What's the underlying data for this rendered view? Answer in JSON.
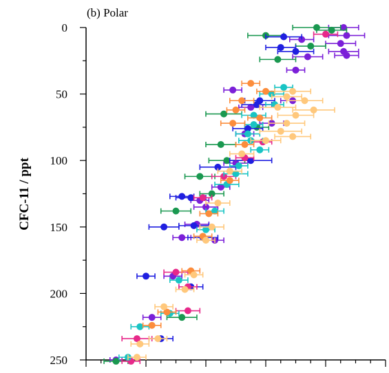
{
  "chart_data": {
    "type": "scatter",
    "panel_label": "(b) Polar",
    "ylabel": "CFC-11 / ppt",
    "xlabel": "",
    "yaxis_inverted": true,
    "ylim": [
      0,
      250
    ],
    "yticks": [
      "0",
      "50",
      "100",
      "150",
      "200",
      "250"
    ],
    "xlim": [
      0,
      10
    ],
    "xtick_labels_visible": false,
    "grid": false,
    "error_bars": "horizontal",
    "series": [
      {
        "color": "#7b1fd8",
        "points": [
          {
            "x": 8.6,
            "y": 0,
            "err": 0.5
          },
          {
            "x": 8.7,
            "y": 6,
            "err": 0.6
          },
          {
            "x": 8.5,
            "y": 12,
            "err": 0.5
          },
          {
            "x": 8.6,
            "y": 18,
            "err": 0.5
          },
          {
            "x": 8.7,
            "y": 21,
            "err": 0.4
          },
          {
            "x": 7.2,
            "y": 9,
            "err": 0.4
          },
          {
            "x": 7.4,
            "y": 22,
            "err": 0.5
          },
          {
            "x": 7.0,
            "y": 32,
            "err": 0.3
          },
          {
            "x": 5.5,
            "y": 60,
            "err": 0.4
          },
          {
            "x": 6.2,
            "y": 72,
            "err": 0.4
          },
          {
            "x": 5.3,
            "y": 80,
            "err": 0.3
          },
          {
            "x": 6.9,
            "y": 55,
            "err": 0.4
          },
          {
            "x": 5.0,
            "y": 102,
            "err": 0.4
          },
          {
            "x": 4.5,
            "y": 120,
            "err": 0.3
          },
          {
            "x": 4.0,
            "y": 135,
            "err": 0.4
          },
          {
            "x": 3.7,
            "y": 148,
            "err": 0.4
          },
          {
            "x": 4.3,
            "y": 160,
            "err": 0.3
          },
          {
            "x": 2.9,
            "y": 187,
            "err": 0.3
          },
          {
            "x": 2.2,
            "y": 218,
            "err": 0.3
          },
          {
            "x": 1.0,
            "y": 250,
            "err": 0.2
          },
          {
            "x": 3.2,
            "y": 158,
            "err": 0.3
          },
          {
            "x": 4.9,
            "y": 47,
            "err": 0.3
          },
          {
            "x": 3.8,
            "y": 130,
            "err": 0.3
          }
        ]
      },
      {
        "color": "#1a9850",
        "points": [
          {
            "x": 7.7,
            "y": 0,
            "err": 0.8
          },
          {
            "x": 8.2,
            "y": 2,
            "err": 0.5
          },
          {
            "x": 7.5,
            "y": 14,
            "err": 0.5
          },
          {
            "x": 6.4,
            "y": 24,
            "err": 0.6
          },
          {
            "x": 6.0,
            "y": 6,
            "err": 0.6
          },
          {
            "x": 4.6,
            "y": 65,
            "err": 0.6
          },
          {
            "x": 4.5,
            "y": 88,
            "err": 0.5
          },
          {
            "x": 4.7,
            "y": 100,
            "err": 0.6
          },
          {
            "x": 3.8,
            "y": 112,
            "err": 0.5
          },
          {
            "x": 3.0,
            "y": 138,
            "err": 0.5
          },
          {
            "x": 3.2,
            "y": 218,
            "err": 0.5
          },
          {
            "x": 1.0,
            "y": 251,
            "err": 0.4
          },
          {
            "x": 4.2,
            "y": 125,
            "err": 0.4
          },
          {
            "x": 5.7,
            "y": 75,
            "err": 0.4
          }
        ]
      },
      {
        "color": "#1f1fe0",
        "points": [
          {
            "x": 6.6,
            "y": 7,
            "err": 0.6
          },
          {
            "x": 7.0,
            "y": 18,
            "err": 0.6
          },
          {
            "x": 6.5,
            "y": 15,
            "err": 0.5
          },
          {
            "x": 5.8,
            "y": 55,
            "err": 0.5
          },
          {
            "x": 5.7,
            "y": 58,
            "err": 0.5
          },
          {
            "x": 5.4,
            "y": 76,
            "err": 0.5
          },
          {
            "x": 5.5,
            "y": 100,
            "err": 0.7
          },
          {
            "x": 4.4,
            "y": 105,
            "err": 0.6
          },
          {
            "x": 3.5,
            "y": 128,
            "err": 0.5
          },
          {
            "x": 2.6,
            "y": 150,
            "err": 0.5
          },
          {
            "x": 3.6,
            "y": 149,
            "err": 0.5
          },
          {
            "x": 3.9,
            "y": 158,
            "err": 0.5
          },
          {
            "x": 3.5,
            "y": 195,
            "err": 0.4
          },
          {
            "x": 2.0,
            "y": 187,
            "err": 0.3
          },
          {
            "x": 2.5,
            "y": 234,
            "err": 0.4
          },
          {
            "x": 3.2,
            "y": 127,
            "err": 0.4
          }
        ]
      },
      {
        "color": "#e7298a",
        "points": [
          {
            "x": 8.0,
            "y": 5,
            "err": 0.4
          },
          {
            "x": 5.9,
            "y": 86,
            "err": 0.3
          },
          {
            "x": 4.6,
            "y": 112,
            "err": 0.4
          },
          {
            "x": 3.9,
            "y": 128,
            "err": 0.3
          },
          {
            "x": 3.4,
            "y": 195,
            "err": 0.3
          },
          {
            "x": 3.0,
            "y": 184,
            "err": 0.4
          },
          {
            "x": 1.7,
            "y": 234,
            "err": 0.5
          },
          {
            "x": 3.4,
            "y": 213,
            "err": 0.4
          },
          {
            "x": 1.5,
            "y": 251,
            "err": 0.3
          },
          {
            "x": 5.3,
            "y": 98,
            "err": 0.3
          }
        ]
      },
      {
        "color": "#19c4c4",
        "points": [
          {
            "x": 6.6,
            "y": 45,
            "err": 0.3
          },
          {
            "x": 6.2,
            "y": 50,
            "err": 0.4
          },
          {
            "x": 5.6,
            "y": 66,
            "err": 0.4
          },
          {
            "x": 5.4,
            "y": 80,
            "err": 0.4
          },
          {
            "x": 5.5,
            "y": 85,
            "err": 0.4
          },
          {
            "x": 5.8,
            "y": 92,
            "err": 0.3
          },
          {
            "x": 5.0,
            "y": 110,
            "err": 0.4
          },
          {
            "x": 4.7,
            "y": 118,
            "err": 0.4
          },
          {
            "x": 4.3,
            "y": 138,
            "err": 0.3
          },
          {
            "x": 4.0,
            "y": 152,
            "err": 0.3
          },
          {
            "x": 3.1,
            "y": 190,
            "err": 0.3
          },
          {
            "x": 2.8,
            "y": 215,
            "err": 0.3
          },
          {
            "x": 1.8,
            "y": 225,
            "err": 0.3
          },
          {
            "x": 1.4,
            "y": 248,
            "err": 0.3
          },
          {
            "x": 6.3,
            "y": 58,
            "err": 0.3
          },
          {
            "x": 5.6,
            "y": 73,
            "err": 0.3
          },
          {
            "x": 5.1,
            "y": 104,
            "err": 0.3
          }
        ]
      },
      {
        "color": "#fc8d3c",
        "points": [
          {
            "x": 5.5,
            "y": 42,
            "err": 0.3
          },
          {
            "x": 5.2,
            "y": 55,
            "err": 0.4
          },
          {
            "x": 5.0,
            "y": 62,
            "err": 0.3
          },
          {
            "x": 5.8,
            "y": 68,
            "err": 0.4
          },
          {
            "x": 4.9,
            "y": 72,
            "err": 0.4
          },
          {
            "x": 5.3,
            "y": 88,
            "err": 0.3
          },
          {
            "x": 4.8,
            "y": 115,
            "err": 0.3
          },
          {
            "x": 4.1,
            "y": 140,
            "err": 0.3
          },
          {
            "x": 3.9,
            "y": 157,
            "err": 0.3
          },
          {
            "x": 2.7,
            "y": 214,
            "err": 0.3
          },
          {
            "x": 2.2,
            "y": 224,
            "err": 0.3
          },
          {
            "x": 3.5,
            "y": 183,
            "err": 0.3
          },
          {
            "x": 6.0,
            "y": 48,
            "err": 0.3
          }
        ]
      },
      {
        "color": "#ffc87c",
        "points": [
          {
            "x": 6.9,
            "y": 48,
            "err": 0.6
          },
          {
            "x": 7.3,
            "y": 55,
            "err": 0.6
          },
          {
            "x": 7.6,
            "y": 62,
            "err": 0.7
          },
          {
            "x": 7.0,
            "y": 66,
            "err": 0.6
          },
          {
            "x": 6.7,
            "y": 72,
            "err": 0.6
          },
          {
            "x": 6.5,
            "y": 78,
            "err": 0.7
          },
          {
            "x": 6.9,
            "y": 82,
            "err": 0.6
          },
          {
            "x": 6.0,
            "y": 85,
            "err": 0.5
          },
          {
            "x": 6.4,
            "y": 60,
            "err": 0.6
          },
          {
            "x": 5.2,
            "y": 95,
            "err": 0.4
          },
          {
            "x": 4.8,
            "y": 108,
            "err": 0.4
          },
          {
            "x": 4.4,
            "y": 132,
            "err": 0.4
          },
          {
            "x": 4.2,
            "y": 150,
            "err": 0.4
          },
          {
            "x": 4.0,
            "y": 160,
            "err": 0.3
          },
          {
            "x": 3.3,
            "y": 197,
            "err": 0.3
          },
          {
            "x": 2.6,
            "y": 210,
            "err": 0.3
          },
          {
            "x": 1.8,
            "y": 238,
            "err": 0.3
          },
          {
            "x": 1.7,
            "y": 248,
            "err": 0.3
          },
          {
            "x": 2.4,
            "y": 234,
            "err": 0.3
          },
          {
            "x": 3.6,
            "y": 186,
            "err": 0.3
          },
          {
            "x": 6.7,
            "y": 52,
            "err": 0.5
          }
        ]
      }
    ]
  }
}
